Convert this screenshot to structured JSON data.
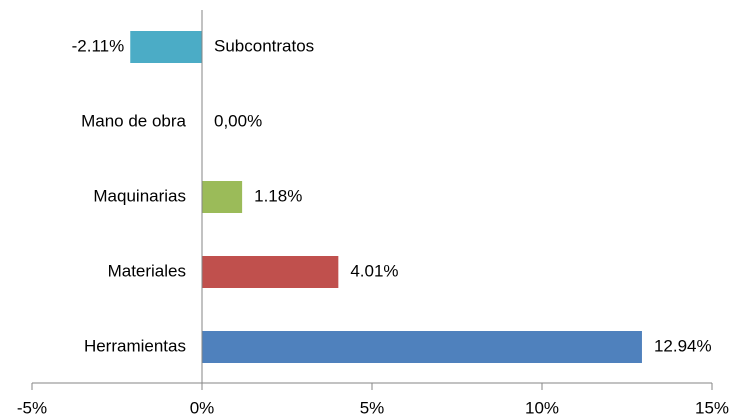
{
  "chart_data": {
    "type": "bar",
    "orientation": "horizontal",
    "categories": [
      "Subcontratos",
      "Mano de obra",
      "Maquinarias",
      "Materiales",
      "Herramientas"
    ],
    "values": [
      -2.11,
      0,
      1.18,
      4.01,
      12.94
    ],
    "value_labels": [
      "-2.11%",
      "0,00%",
      "1.18%",
      "4.01%",
      "12.94%"
    ],
    "colors": [
      "#4bacc6",
      null,
      "#9bbb59",
      "#c0504d",
      "#4f81bd"
    ],
    "xlim": [
      -5,
      15
    ],
    "xticks": [
      {
        "value": -5,
        "label": "-5%"
      },
      {
        "value": 0,
        "label": "0%"
      },
      {
        "value": 5,
        "label": "5%"
      },
      {
        "value": 10,
        "label": "10%"
      },
      {
        "value": 15,
        "label": "15%"
      }
    ]
  }
}
